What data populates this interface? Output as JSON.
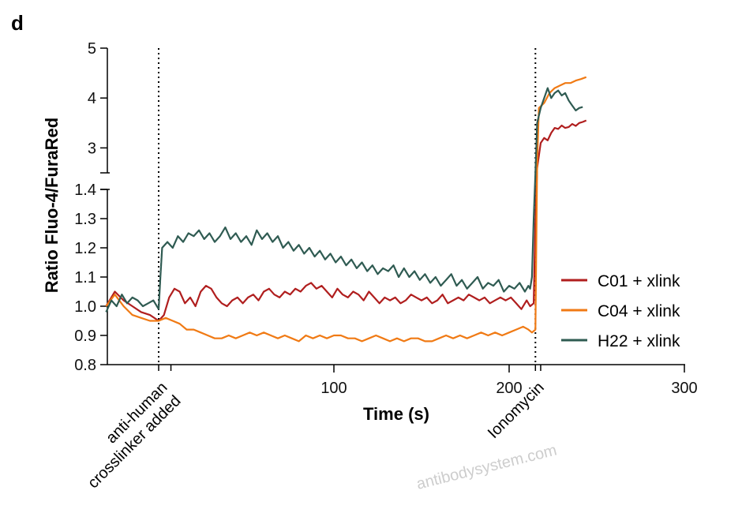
{
  "panel_label": "d",
  "watermark": "antibodysystem.com",
  "chart_data": {
    "type": "line",
    "title": "",
    "xlabel": "Time (s)",
    "ylabel": "Ratio Fluo-4/FuraRed",
    "x_ticks": [
      100,
      200,
      300
    ],
    "xlim": [
      -30,
      330
    ],
    "y_axis_break": true,
    "y_lower": {
      "ylim": [
        0.8,
        1.4
      ],
      "ticks": [
        "0.8",
        "0.9",
        "1.0",
        "1.1",
        "1.2",
        "1.3",
        "1.4"
      ]
    },
    "y_upper": {
      "ylim": [
        2.5,
        5
      ],
      "ticks": [
        "3",
        "4",
        "5"
      ]
    },
    "grid": false,
    "legend_position": "right",
    "annotations": [
      {
        "label": "anti-human crosslinker added",
        "lines": [
          "anti-human",
          "crosslinker added"
        ],
        "x": 0
      },
      {
        "label": "Ionomycin",
        "lines": [
          "Ionomycin"
        ],
        "x": 215
      }
    ],
    "series": [
      {
        "name": "C01 + xlink",
        "color": "#b01e1e",
        "points": [
          [
            -30,
            1.0
          ],
          [
            -25,
            1.05
          ],
          [
            -20,
            1.02
          ],
          [
            -15,
            1.0
          ],
          [
            -10,
            0.98
          ],
          [
            -5,
            0.97
          ],
          [
            0,
            0.95
          ],
          [
            3,
            0.97
          ],
          [
            6,
            1.03
          ],
          [
            9,
            1.06
          ],
          [
            12,
            1.05
          ],
          [
            15,
            1.01
          ],
          [
            18,
            1.03
          ],
          [
            21,
            1.0
          ],
          [
            24,
            1.05
          ],
          [
            27,
            1.07
          ],
          [
            30,
            1.06
          ],
          [
            33,
            1.03
          ],
          [
            36,
            1.01
          ],
          [
            39,
            1.0
          ],
          [
            42,
            1.02
          ],
          [
            45,
            1.03
          ],
          [
            48,
            1.01
          ],
          [
            51,
            1.03
          ],
          [
            54,
            1.04
          ],
          [
            57,
            1.02
          ],
          [
            60,
            1.05
          ],
          [
            63,
            1.06
          ],
          [
            66,
            1.04
          ],
          [
            69,
            1.03
          ],
          [
            72,
            1.05
          ],
          [
            75,
            1.04
          ],
          [
            78,
            1.06
          ],
          [
            81,
            1.05
          ],
          [
            84,
            1.07
          ],
          [
            87,
            1.08
          ],
          [
            90,
            1.06
          ],
          [
            93,
            1.07
          ],
          [
            96,
            1.05
          ],
          [
            99,
            1.03
          ],
          [
            102,
            1.06
          ],
          [
            105,
            1.04
          ],
          [
            108,
            1.03
          ],
          [
            111,
            1.05
          ],
          [
            114,
            1.04
          ],
          [
            117,
            1.02
          ],
          [
            120,
            1.05
          ],
          [
            123,
            1.03
          ],
          [
            126,
            1.01
          ],
          [
            129,
            1.03
          ],
          [
            132,
            1.02
          ],
          [
            135,
            1.03
          ],
          [
            138,
            1.01
          ],
          [
            141,
            1.02
          ],
          [
            144,
            1.04
          ],
          [
            147,
            1.03
          ],
          [
            150,
            1.02
          ],
          [
            153,
            1.03
          ],
          [
            156,
            1.01
          ],
          [
            159,
            1.02
          ],
          [
            162,
            1.04
          ],
          [
            165,
            1.01
          ],
          [
            168,
            1.02
          ],
          [
            171,
            1.03
          ],
          [
            174,
            1.02
          ],
          [
            177,
            1.04
          ],
          [
            180,
            1.03
          ],
          [
            183,
            1.02
          ],
          [
            186,
            1.03
          ],
          [
            189,
            1.01
          ],
          [
            192,
            1.02
          ],
          [
            195,
            1.03
          ],
          [
            198,
            1.02
          ],
          [
            201,
            1.03
          ],
          [
            204,
            1.01
          ],
          [
            207,
            0.99
          ],
          [
            210,
            1.02
          ],
          [
            212,
            1.0
          ],
          [
            214,
            1.01
          ],
          [
            215,
            1.3
          ],
          [
            216,
            2.6
          ],
          [
            218,
            3.1
          ],
          [
            220,
            3.2
          ],
          [
            222,
            3.15
          ],
          [
            224,
            3.3
          ],
          [
            226,
            3.4
          ],
          [
            228,
            3.38
          ],
          [
            230,
            3.45
          ],
          [
            232,
            3.4
          ],
          [
            234,
            3.42
          ],
          [
            236,
            3.48
          ],
          [
            238,
            3.44
          ],
          [
            240,
            3.5
          ],
          [
            242,
            3.52
          ],
          [
            244,
            3.55
          ]
        ]
      },
      {
        "name": "C04 + xlink",
        "color": "#f07a14",
        "points": [
          [
            -30,
            1.0
          ],
          [
            -25,
            1.04
          ],
          [
            -20,
            1.0
          ],
          [
            -15,
            0.97
          ],
          [
            -10,
            0.96
          ],
          [
            -5,
            0.95
          ],
          [
            0,
            0.95
          ],
          [
            4,
            0.96
          ],
          [
            8,
            0.95
          ],
          [
            12,
            0.94
          ],
          [
            16,
            0.92
          ],
          [
            20,
            0.92
          ],
          [
            24,
            0.91
          ],
          [
            28,
            0.9
          ],
          [
            32,
            0.89
          ],
          [
            36,
            0.89
          ],
          [
            40,
            0.9
          ],
          [
            44,
            0.89
          ],
          [
            48,
            0.9
          ],
          [
            52,
            0.91
          ],
          [
            56,
            0.9
          ],
          [
            60,
            0.91
          ],
          [
            64,
            0.9
          ],
          [
            68,
            0.89
          ],
          [
            72,
            0.9
          ],
          [
            76,
            0.89
          ],
          [
            80,
            0.88
          ],
          [
            84,
            0.9
          ],
          [
            88,
            0.89
          ],
          [
            92,
            0.9
          ],
          [
            96,
            0.89
          ],
          [
            100,
            0.9
          ],
          [
            104,
            0.9
          ],
          [
            108,
            0.89
          ],
          [
            112,
            0.89
          ],
          [
            116,
            0.88
          ],
          [
            120,
            0.89
          ],
          [
            124,
            0.9
          ],
          [
            128,
            0.89
          ],
          [
            132,
            0.88
          ],
          [
            136,
            0.89
          ],
          [
            140,
            0.88
          ],
          [
            144,
            0.89
          ],
          [
            148,
            0.89
          ],
          [
            152,
            0.88
          ],
          [
            156,
            0.88
          ],
          [
            160,
            0.89
          ],
          [
            164,
            0.9
          ],
          [
            168,
            0.89
          ],
          [
            172,
            0.9
          ],
          [
            176,
            0.89
          ],
          [
            180,
            0.9
          ],
          [
            184,
            0.91
          ],
          [
            188,
            0.9
          ],
          [
            192,
            0.91
          ],
          [
            196,
            0.9
          ],
          [
            200,
            0.91
          ],
          [
            204,
            0.92
          ],
          [
            208,
            0.93
          ],
          [
            211,
            0.92
          ],
          [
            213,
            0.91
          ],
          [
            215,
            0.92
          ],
          [
            216,
            2.7
          ],
          [
            217,
            3.8
          ],
          [
            220,
            3.9
          ],
          [
            223,
            4.1
          ],
          [
            226,
            4.2
          ],
          [
            229,
            4.25
          ],
          [
            232,
            4.3
          ],
          [
            235,
            4.3
          ],
          [
            238,
            4.35
          ],
          [
            241,
            4.38
          ],
          [
            244,
            4.42
          ]
        ]
      },
      {
        "name": "H22 + xlink",
        "color": "#2f5b52",
        "points": [
          [
            -30,
            0.98
          ],
          [
            -27,
            1.02
          ],
          [
            -24,
            1.0
          ],
          [
            -21,
            1.04
          ],
          [
            -18,
            1.01
          ],
          [
            -15,
            1.03
          ],
          [
            -12,
            1.02
          ],
          [
            -9,
            1.0
          ],
          [
            -6,
            1.01
          ],
          [
            -3,
            1.02
          ],
          [
            0,
            0.99
          ],
          [
            1,
            1.1
          ],
          [
            2,
            1.2
          ],
          [
            5,
            1.22
          ],
          [
            8,
            1.2
          ],
          [
            11,
            1.24
          ],
          [
            14,
            1.22
          ],
          [
            17,
            1.25
          ],
          [
            20,
            1.24
          ],
          [
            23,
            1.26
          ],
          [
            26,
            1.23
          ],
          [
            29,
            1.25
          ],
          [
            32,
            1.22
          ],
          [
            35,
            1.24
          ],
          [
            38,
            1.27
          ],
          [
            41,
            1.23
          ],
          [
            44,
            1.25
          ],
          [
            47,
            1.22
          ],
          [
            50,
            1.24
          ],
          [
            53,
            1.21
          ],
          [
            56,
            1.26
          ],
          [
            59,
            1.23
          ],
          [
            62,
            1.25
          ],
          [
            65,
            1.22
          ],
          [
            68,
            1.24
          ],
          [
            71,
            1.2
          ],
          [
            74,
            1.22
          ],
          [
            77,
            1.19
          ],
          [
            80,
            1.21
          ],
          [
            83,
            1.18
          ],
          [
            86,
            1.2
          ],
          [
            89,
            1.17
          ],
          [
            92,
            1.19
          ],
          [
            95,
            1.16
          ],
          [
            98,
            1.18
          ],
          [
            101,
            1.15
          ],
          [
            104,
            1.17
          ],
          [
            107,
            1.14
          ],
          [
            110,
            1.16
          ],
          [
            113,
            1.13
          ],
          [
            116,
            1.15
          ],
          [
            119,
            1.12
          ],
          [
            122,
            1.14
          ],
          [
            125,
            1.11
          ],
          [
            128,
            1.13
          ],
          [
            131,
            1.12
          ],
          [
            134,
            1.14
          ],
          [
            137,
            1.1
          ],
          [
            140,
            1.13
          ],
          [
            143,
            1.1
          ],
          [
            146,
            1.12
          ],
          [
            149,
            1.09
          ],
          [
            152,
            1.11
          ],
          [
            155,
            1.08
          ],
          [
            158,
            1.1
          ],
          [
            161,
            1.07
          ],
          [
            164,
            1.09
          ],
          [
            167,
            1.11
          ],
          [
            170,
            1.07
          ],
          [
            173,
            1.09
          ],
          [
            176,
            1.06
          ],
          [
            179,
            1.08
          ],
          [
            182,
            1.1
          ],
          [
            185,
            1.06
          ],
          [
            188,
            1.08
          ],
          [
            191,
            1.07
          ],
          [
            194,
            1.09
          ],
          [
            197,
            1.05
          ],
          [
            200,
            1.07
          ],
          [
            203,
            1.06
          ],
          [
            206,
            1.08
          ],
          [
            209,
            1.05
          ],
          [
            211,
            1.07
          ],
          [
            212,
            1.06
          ],
          [
            213,
            1.1
          ],
          [
            214,
            1.3
          ],
          [
            215,
            2.5
          ],
          [
            216,
            3.5
          ],
          [
            218,
            3.8
          ],
          [
            220,
            4.0
          ],
          [
            222,
            4.2
          ],
          [
            224,
            4.0
          ],
          [
            226,
            4.1
          ],
          [
            228,
            4.15
          ],
          [
            230,
            4.05
          ],
          [
            232,
            4.1
          ],
          [
            234,
            3.95
          ],
          [
            236,
            3.85
          ],
          [
            238,
            3.75
          ],
          [
            240,
            3.8
          ],
          [
            242,
            3.82
          ]
        ]
      }
    ]
  }
}
